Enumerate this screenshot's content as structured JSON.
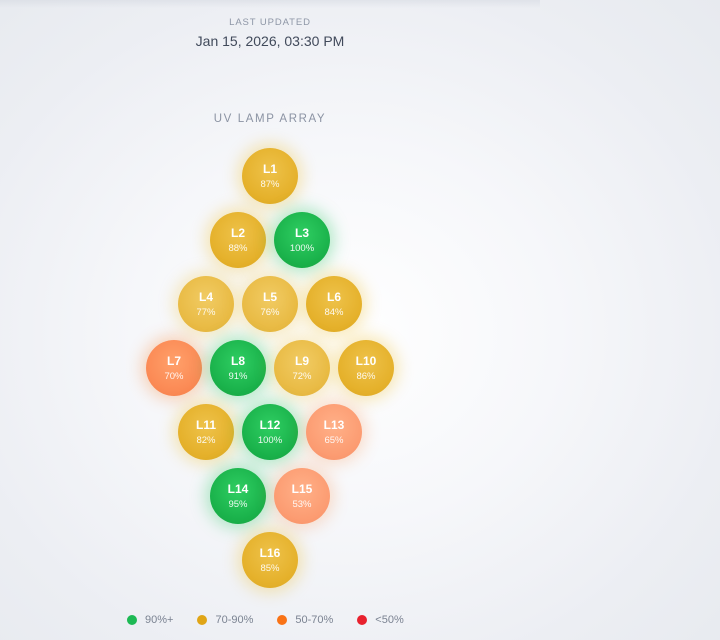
{
  "header": {
    "last_updated_label": "LAST UPDATED",
    "last_updated_value": "Jan 15, 2026, 03:30 PM"
  },
  "array": {
    "title": "UV LAMP ARRAY",
    "lamps": [
      {
        "name": "L1",
        "percent": "87%",
        "level": 87
      },
      {
        "name": "L2",
        "percent": "88%",
        "level": 88
      },
      {
        "name": "L3",
        "percent": "100%",
        "level": 100
      },
      {
        "name": "L4",
        "percent": "77%",
        "level": 77
      },
      {
        "name": "L5",
        "percent": "76%",
        "level": 76
      },
      {
        "name": "L6",
        "percent": "84%",
        "level": 84
      },
      {
        "name": "L7",
        "percent": "70%",
        "level": 70
      },
      {
        "name": "L8",
        "percent": "91%",
        "level": 91
      },
      {
        "name": "L9",
        "percent": "72%",
        "level": 72
      },
      {
        "name": "L10",
        "percent": "86%",
        "level": 86
      },
      {
        "name": "L11",
        "percent": "82%",
        "level": 82
      },
      {
        "name": "L12",
        "percent": "100%",
        "level": 100
      },
      {
        "name": "L13",
        "percent": "65%",
        "level": 65
      },
      {
        "name": "L14",
        "percent": "95%",
        "level": 95
      },
      {
        "name": "L15",
        "percent": "53%",
        "level": 53
      },
      {
        "name": "L16",
        "percent": "85%",
        "level": 85
      }
    ]
  },
  "legend": [
    {
      "label": "90%+",
      "color": "#1db954"
    },
    {
      "label": "70-90%",
      "color": "#e0a516"
    },
    {
      "label": "50-70%",
      "color": "#f97316"
    },
    {
      "label": "<50%",
      "color": "#e8212e"
    }
  ]
}
